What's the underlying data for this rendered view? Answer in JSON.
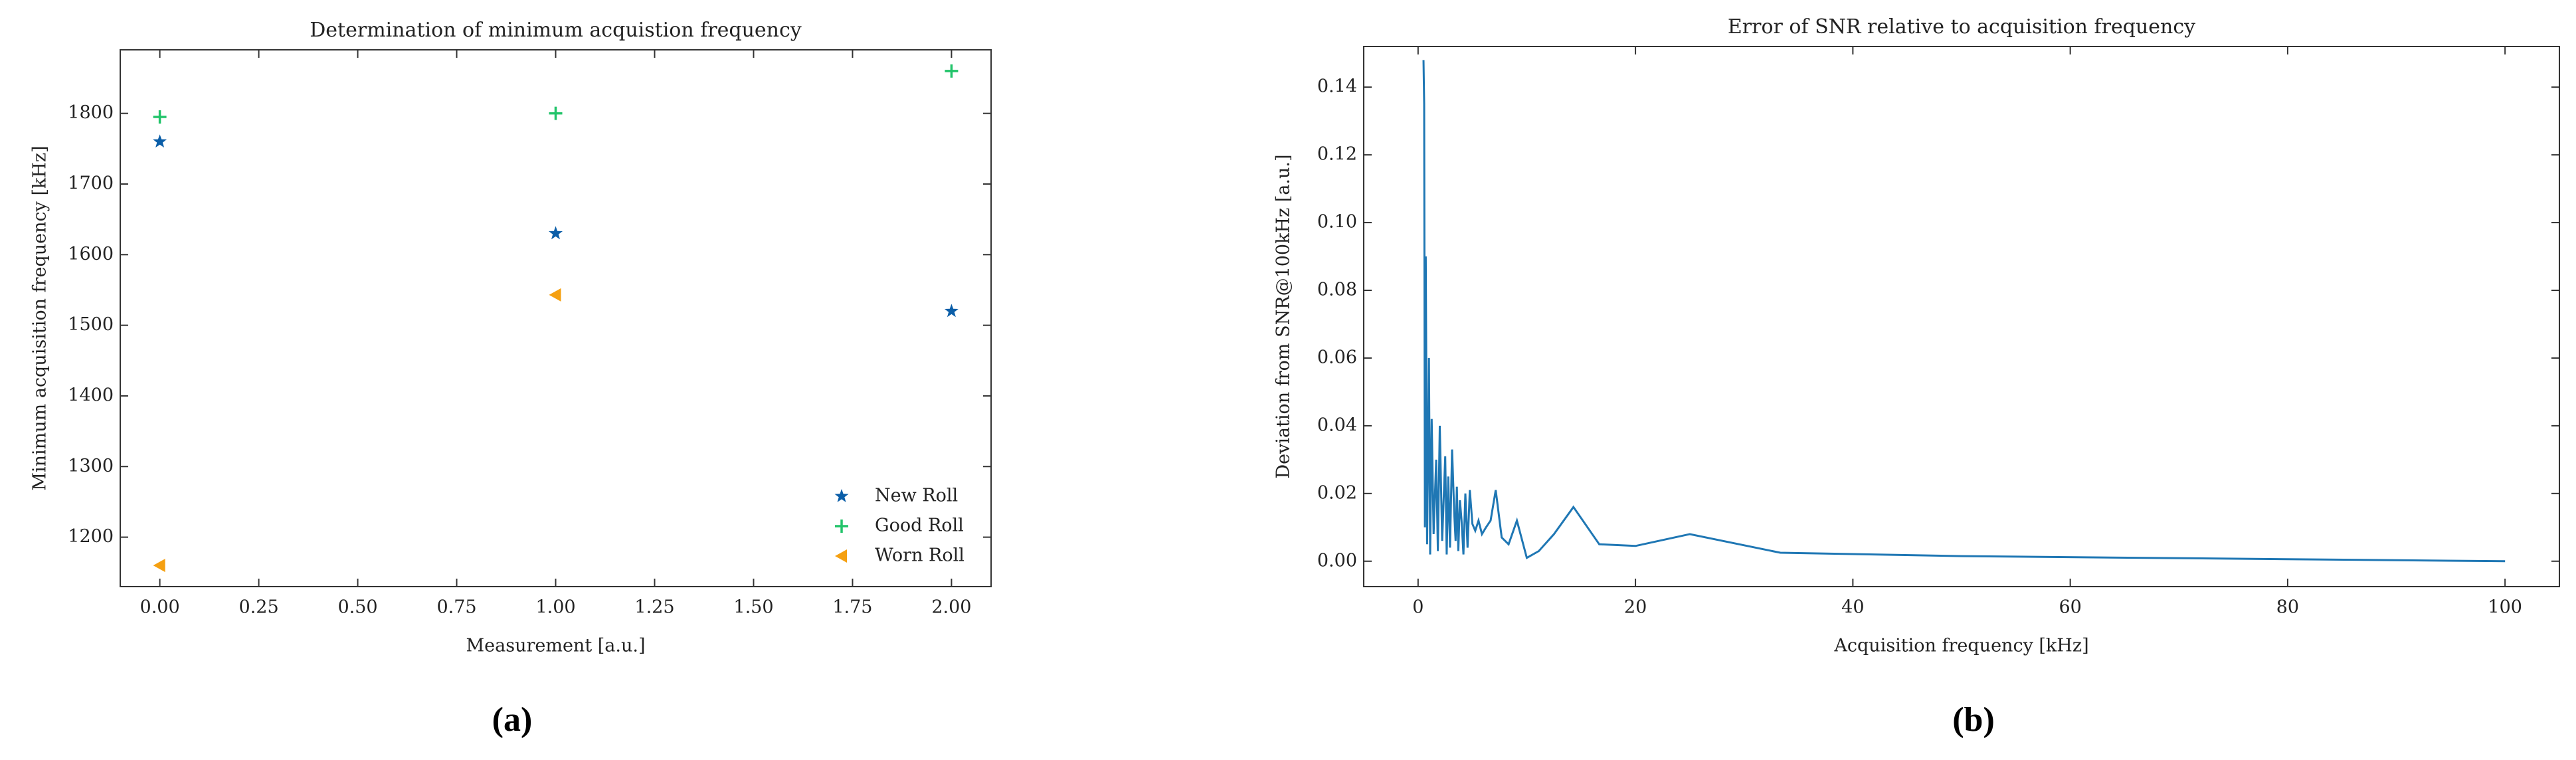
{
  "chart_data": [
    {
      "type": "scatter",
      "title": "Determination of minimum acquistion frequency",
      "panel_label": "(a)",
      "x_label": "Measurement [a.u.]",
      "y_label": "Minimum acquisition frequency [kHz]",
      "xlim": [
        -0.1,
        2.1
      ],
      "xticks": [
        {
          "value": 0,
          "label": "0.00"
        },
        {
          "value": 0.25,
          "label": "0.25"
        },
        {
          "value": 0.5,
          "label": "0.50"
        },
        {
          "value": 0.75,
          "label": "0.75"
        },
        {
          "value": 1,
          "label": "1.00"
        },
        {
          "value": 1.25,
          "label": "1.25"
        },
        {
          "value": 1.5,
          "label": "1.50"
        },
        {
          "value": 1.75,
          "label": "1.75"
        },
        {
          "value": 2,
          "label": "2.00"
        }
      ],
      "ylim": [
        1130,
        1890
      ],
      "yticks": [
        1200,
        1300,
        1400,
        1500,
        1600,
        1700,
        1800
      ],
      "legend": "lower right",
      "series": [
        {
          "name": "New Roll",
          "color": "#0b5ea8",
          "marker": "star",
          "x": [
            0,
            1,
            2
          ],
          "values": [
            1760,
            1630,
            1520
          ]
        },
        {
          "name": "Good Roll",
          "color": "#22c46a",
          "marker": "plus",
          "x": [
            0,
            1,
            2
          ],
          "values": [
            1795,
            1800,
            1860
          ]
        },
        {
          "name": "Worn Roll",
          "color": "#f5a011",
          "marker": "triangle-left",
          "x": [
            0,
            1
          ],
          "values": [
            1160,
            1543
          ]
        }
      ]
    },
    {
      "type": "line",
      "title": "Error of SNR relative to acquisition frequency",
      "panel_label": "(b)",
      "x_label": "Acquisition frequency [kHz]",
      "y_label": "Deviation from SNR@100kHz [a.u.]",
      "xlim": [
        -5,
        105
      ],
      "xticks": [
        0,
        20,
        40,
        60,
        80,
        100
      ],
      "ylim": [
        -0.0075,
        0.152
      ],
      "yticks": [
        {
          "value": 0,
          "label": "0.00"
        },
        {
          "value": 0.02,
          "label": "0.02"
        },
        {
          "value": 0.04,
          "label": "0.04"
        },
        {
          "value": 0.06,
          "label": "0.06"
        },
        {
          "value": 0.08,
          "label": "0.08"
        },
        {
          "value": 0.1,
          "label": "0.10"
        },
        {
          "value": 0.12,
          "label": "0.12"
        },
        {
          "value": 0.14,
          "label": "0.14"
        }
      ],
      "color": "#1f77b4",
      "x": [
        0.5,
        0.56,
        0.63,
        0.71,
        0.83,
        1,
        1.11,
        1.25,
        1.43,
        1.67,
        1.82,
        2,
        2.22,
        2.5,
        2.63,
        2.78,
        2.94,
        3.13,
        3.33,
        3.45,
        3.57,
        3.7,
        3.85,
        4,
        4.17,
        4.35,
        4.55,
        4.76,
        5,
        5.26,
        5.56,
        5.88,
        6.25,
        6.67,
        7.14,
        7.69,
        8.33,
        9.09,
        10,
        11.11,
        12.5,
        14.29,
        16.67,
        20,
        25,
        33.33,
        50,
        100
      ],
      "values": [
        0.148,
        0.135,
        0.01,
        0.09,
        0.005,
        0.06,
        0.002,
        0.042,
        0.008,
        0.03,
        0.003,
        0.04,
        0.006,
        0.031,
        0.002,
        0.025,
        0.004,
        0.033,
        0.014,
        0.006,
        0.022,
        0.003,
        0.018,
        0.012,
        0.002,
        0.02,
        0.004,
        0.021,
        0.011,
        0.009,
        0.012,
        0.008,
        0.01,
        0.012,
        0.021,
        0.007,
        0.005,
        0.012,
        0.001,
        0.003,
        0.008,
        0.016,
        0.005,
        0.0045,
        0.008,
        0.0025,
        0.0015,
        0.0
      ]
    }
  ]
}
